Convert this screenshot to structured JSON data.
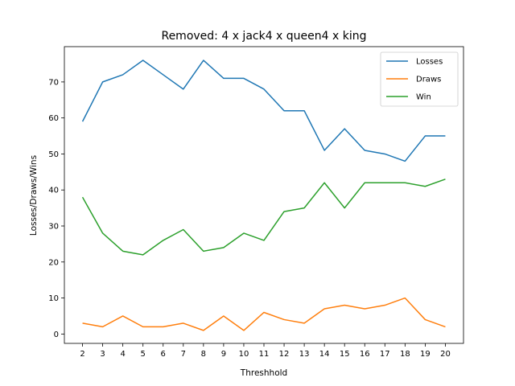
{
  "chart_data": {
    "type": "line",
    "title": "Removed: 4 x jack4 x queen4 x king",
    "xlabel": "Threshhold",
    "ylabel": "Losses/Draws/Wins",
    "x": [
      2,
      3,
      4,
      5,
      6,
      7,
      8,
      9,
      10,
      11,
      12,
      13,
      14,
      15,
      16,
      17,
      18,
      19,
      20
    ],
    "xlim": [
      1.1,
      20.9
    ],
    "ylim": [
      -2.6,
      79.8
    ],
    "yticks": [
      0,
      10,
      20,
      30,
      40,
      50,
      60,
      70
    ],
    "grid": false,
    "legend_position": "top-right",
    "series": [
      {
        "name": "Losses",
        "color": "#1f77b4",
        "values": [
          59,
          70,
          72,
          76,
          72,
          68,
          76,
          71,
          71,
          68,
          62,
          62,
          51,
          57,
          51,
          50,
          48,
          55,
          55
        ]
      },
      {
        "name": "Draws",
        "color": "#ff7f0e",
        "values": [
          3,
          2,
          5,
          2,
          2,
          3,
          1,
          5,
          1,
          6,
          4,
          3,
          7,
          8,
          7,
          8,
          10,
          4,
          2
        ]
      },
      {
        "name": "Win",
        "color": "#2ca02c",
        "values": [
          38,
          28,
          23,
          22,
          26,
          29,
          23,
          24,
          28,
          26,
          34,
          35,
          42,
          35,
          42,
          42,
          42,
          41,
          43
        ]
      }
    ]
  }
}
